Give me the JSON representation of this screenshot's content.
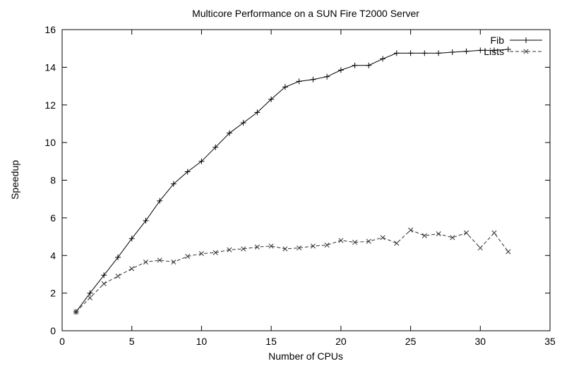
{
  "chart_data": {
    "type": "line",
    "title": "Multicore Performance on a SUN Fire T2000 Server",
    "xlabel": "Number of CPUs",
    "ylabel": "Speedup",
    "xlim": [
      0,
      35
    ],
    "ylim": [
      0,
      16
    ],
    "xticks": [
      0,
      5,
      10,
      15,
      20,
      25,
      30,
      35
    ],
    "yticks": [
      0,
      2,
      4,
      6,
      8,
      10,
      12,
      14,
      16
    ],
    "grid": false,
    "legend_position": "top-right",
    "x": [
      1,
      2,
      3,
      4,
      5,
      6,
      7,
      8,
      9,
      10,
      11,
      12,
      13,
      14,
      15,
      16,
      17,
      18,
      19,
      20,
      21,
      22,
      23,
      24,
      25,
      26,
      27,
      28,
      29,
      30,
      31,
      32
    ],
    "series": [
      {
        "name": "Fib",
        "line": "solid",
        "marker": "plus",
        "color": "#000000",
        "values": [
          1.0,
          2.0,
          2.95,
          3.9,
          4.9,
          5.85,
          6.9,
          7.8,
          8.45,
          9.0,
          9.75,
          10.5,
          11.05,
          11.6,
          12.3,
          12.95,
          13.25,
          13.35,
          13.5,
          13.85,
          14.1,
          14.1,
          14.45,
          14.75,
          14.75,
          14.75,
          14.75,
          14.8,
          14.85,
          14.9,
          14.9,
          14.95
        ]
      },
      {
        "name": "Lists",
        "line": "dashed",
        "marker": "x",
        "color": "#333333",
        "values": [
          1.0,
          1.75,
          2.5,
          2.9,
          3.3,
          3.65,
          3.75,
          3.65,
          3.95,
          4.1,
          4.15,
          4.3,
          4.35,
          4.45,
          4.5,
          4.35,
          4.4,
          4.5,
          4.55,
          4.8,
          4.7,
          4.75,
          4.95,
          4.65,
          5.35,
          5.05,
          5.15,
          4.95,
          5.2,
          4.4,
          5.2,
          4.2
        ]
      }
    ]
  }
}
